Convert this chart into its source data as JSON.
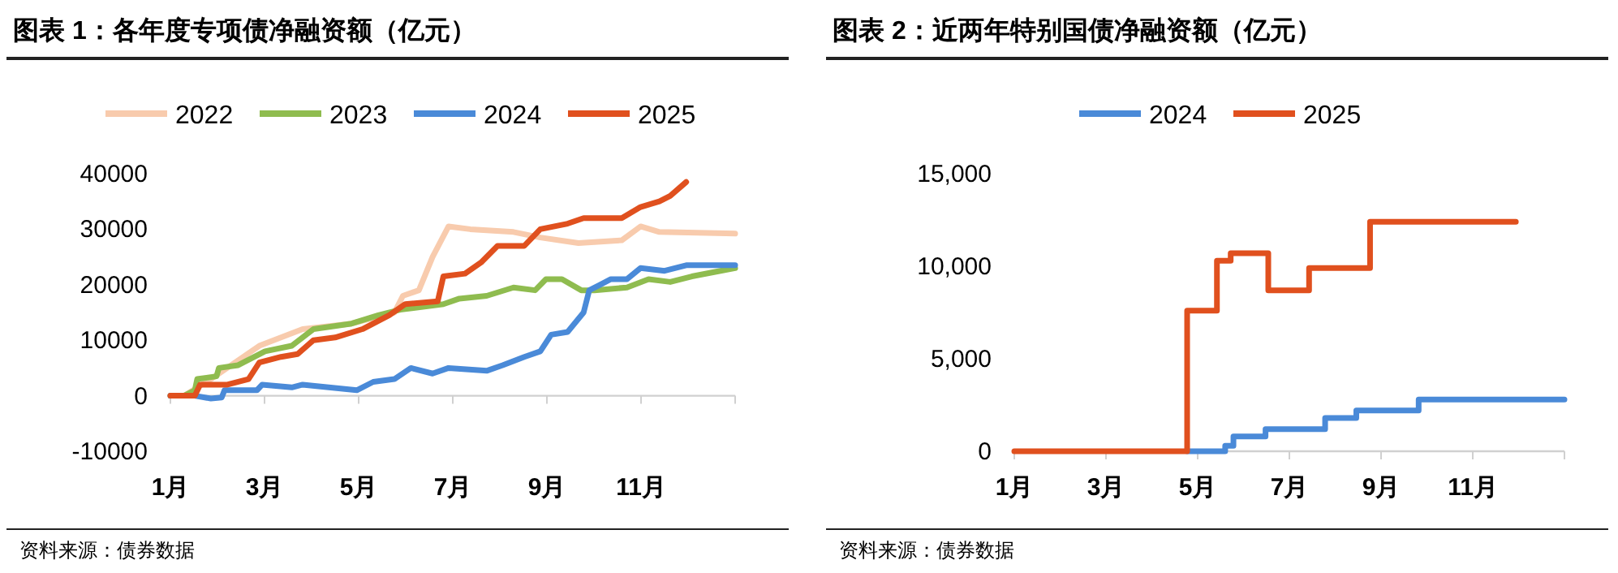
{
  "chart_data": [
    {
      "type": "line",
      "title": "图表 1：各年度专项债净融资额（亿元）",
      "legend": "top",
      "xlim": [
        1,
        13
      ],
      "xticks": [
        {
          "value": 1,
          "label": "1月"
        },
        {
          "value": 3,
          "label": "3月"
        },
        {
          "value": 5,
          "label": "5月"
        },
        {
          "value": 7,
          "label": "7月"
        },
        {
          "value": 9,
          "label": "9月"
        },
        {
          "value": 11,
          "label": "11月"
        },
        {
          "value": 13,
          "label": null
        }
      ],
      "ylim": [
        -10000,
        40000
      ],
      "yticks": [
        -10000,
        0,
        10000,
        20000,
        30000,
        40000
      ],
      "annotations": [
        "资料来源：债券数据"
      ],
      "series": [
        {
          "name": "2022",
          "color": "#f8cbad",
          "x": [
            1,
            1.29,
            1.86,
            2.89,
            3.81,
            4.85,
            5.76,
            5.94,
            6.28,
            6.57,
            6.91,
            7.37,
            8.29,
            8.86,
            9.67,
            10.59,
            10.99,
            11.39,
            13
          ],
          "values": [
            0,
            0,
            3000,
            9000,
            12000,
            13000,
            15000,
            18000,
            19000,
            25000,
            30500,
            30000,
            29500,
            28500,
            27500,
            28000,
            30500,
            29500,
            29200
          ]
        },
        {
          "name": "2023",
          "color": "#8fbc4f",
          "x": [
            1,
            1.29,
            1.52,
            1.57,
            1.98,
            2.03,
            2.44,
            3.01,
            3.58,
            4.04,
            4.85,
            5.42,
            5.88,
            6.8,
            7.14,
            7.72,
            8.29,
            8.75,
            8.98,
            9.32,
            9.73,
            10.01,
            10.7,
            11.16,
            11.62,
            12.08,
            13
          ],
          "values": [
            0,
            0,
            1000,
            3000,
            3500,
            5000,
            5500,
            8000,
            9000,
            12000,
            13000,
            14500,
            15500,
            16500,
            17500,
            18000,
            19500,
            19000,
            21000,
            21000,
            19000,
            19000,
            19500,
            21000,
            20500,
            21500,
            23000
          ]
        },
        {
          "name": "2024",
          "color": "#4a8ad8",
          "x": [
            1,
            1.52,
            1.86,
            2.09,
            2.15,
            2.84,
            2.95,
            3.58,
            3.81,
            4.96,
            5.31,
            5.76,
            6.11,
            6.57,
            6.91,
            7.72,
            8.06,
            8.52,
            8.86,
            9.09,
            9.44,
            9.78,
            9.9,
            10.13,
            10.36,
            10.7,
            10.99,
            11.5,
            11.96,
            13
          ],
          "values": [
            0,
            0,
            -500,
            -300,
            1000,
            1000,
            2000,
            1500,
            2000,
            1000,
            2500,
            3000,
            5000,
            4000,
            5000,
            4500,
            5500,
            7000,
            8000,
            11000,
            11500,
            15000,
            19000,
            20000,
            21000,
            21000,
            23000,
            22500,
            23500,
            23500
          ]
        },
        {
          "name": "2025",
          "color": "#e0501e",
          "x": [
            1,
            1.52,
            1.63,
            2.21,
            2.66,
            2.89,
            3.35,
            3.7,
            4.04,
            4.5,
            5.08,
            5.65,
            5.99,
            6.68,
            6.8,
            7.26,
            7.6,
            7.95,
            8.52,
            8.86,
            9.44,
            9.78,
            10.59,
            10.99,
            11.39,
            11.62,
            11.96
          ],
          "values": [
            0,
            0,
            2000,
            2000,
            3000,
            6000,
            7000,
            7500,
            10000,
            10500,
            12000,
            14500,
            16500,
            17000,
            21500,
            22000,
            24000,
            27000,
            27000,
            30000,
            31000,
            32000,
            32000,
            34000,
            35000,
            36000,
            38500
          ]
        }
      ]
    },
    {
      "type": "step",
      "title": "图表 2：近两年特别国债净融资额（亿元）",
      "legend": "top",
      "xlim": [
        1,
        13
      ],
      "xticks": [
        {
          "value": 1,
          "label": "1月"
        },
        {
          "value": 3,
          "label": "3月"
        },
        {
          "value": 5,
          "label": "5月"
        },
        {
          "value": 7,
          "label": "7月"
        },
        {
          "value": 9,
          "label": "9月"
        },
        {
          "value": 11,
          "label": "11月"
        },
        {
          "value": 13,
          "label": null
        }
      ],
      "ylim": [
        0,
        15000
      ],
      "yticks": [
        {
          "value": 0,
          "label": "0"
        },
        {
          "value": 5000,
          "label": "5,000"
        },
        {
          "value": 10000,
          "label": "10,000"
        },
        {
          "value": 15000,
          "label": "15,000"
        }
      ],
      "annotations": [
        "资料来源：债券数据"
      ],
      "series": [
        {
          "name": "2024",
          "color": "#4a8ad8",
          "x": [
            4.77,
            5.6,
            5.78,
            6.48,
            7.78,
            8.46,
            9.82,
            13
          ],
          "values": [
            0,
            300,
            800,
            1200,
            1800,
            2200,
            2800,
            2800
          ]
        },
        {
          "name": "2025",
          "color": "#e0501e",
          "x": [
            1,
            4.77,
            5.42,
            5.72,
            6.54,
            7.43,
            8.76,
            11.94
          ],
          "values": [
            0,
            7600,
            10300,
            10700,
            8700,
            9900,
            12400,
            12400
          ]
        }
      ]
    }
  ]
}
